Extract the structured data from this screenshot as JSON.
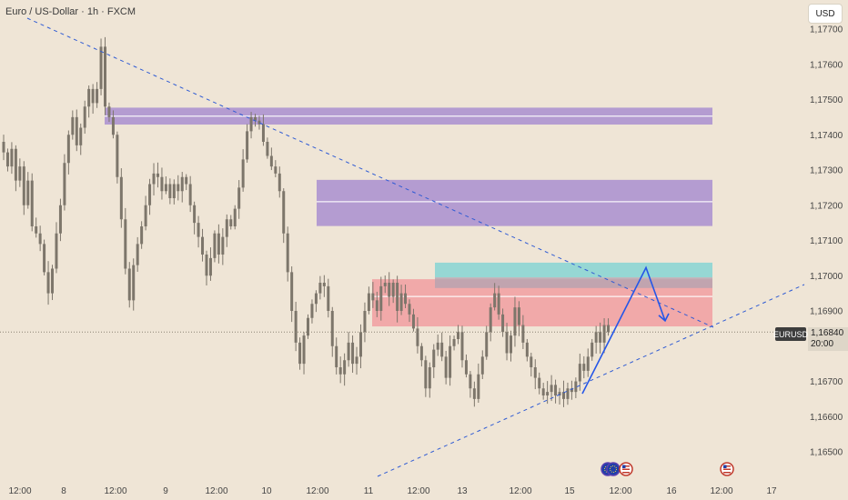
{
  "header": {
    "title": "Euro / US-Dollar · 1h · FXCM",
    "currency_button": "USD"
  },
  "colors": {
    "background": "#efe5d6",
    "candle": "#7d766b",
    "trendline": "#2f5bd4",
    "projection": "#2456e8",
    "zone_purple": "#a98fd0",
    "zone_red": "#f19a9e",
    "zone_teal": "#7fd3d3"
  },
  "chart_data": {
    "type": "candlestick",
    "symbol": "EURUSD",
    "timeframe": "1h",
    "y_axis": {
      "ticks": [
        "1,17700",
        "1,17600",
        "1,17500",
        "1,17400",
        "1,17300",
        "1,17200",
        "1,17100",
        "1,17000",
        "1,16900",
        "1,16700",
        "1,16600",
        "1,16500"
      ],
      "range": [
        1.1645,
        1.1777
      ]
    },
    "x_axis": {
      "ticks": [
        "12:00",
        "8",
        "12:00",
        "9",
        "12:00",
        "10",
        "12:00",
        "11",
        "12:00",
        "13",
        "12:00",
        "15",
        "12:00",
        "16",
        "12:00",
        "17"
      ]
    },
    "current_price": {
      "symbol": "EURUSD",
      "value": "1,16840",
      "countdown": "20:00",
      "level": 1.1684
    },
    "zones": [
      {
        "kind": "supply",
        "color": "purple",
        "top": 1.17477,
        "bottom": 1.17429,
        "midline": 1.17453
      },
      {
        "kind": "supply",
        "color": "purple",
        "top": 1.17272,
        "bottom": 1.17141,
        "midline": 1.1721
      },
      {
        "kind": "supply",
        "color": "red",
        "top": 1.1699,
        "bottom": 1.16856,
        "midline": 1.16941
      },
      {
        "kind": "fvg",
        "color": "teal",
        "top": 1.17037,
        "bottom": 1.16995
      }
    ],
    "price_path": [
      1.1735,
      1.1731,
      1.1736,
      1.1727,
      1.1731,
      1.172,
      1.1727,
      1.1714,
      1.1712,
      1.1709,
      1.1701,
      1.1695,
      1.1702,
      1.1712,
      1.172,
      1.1732,
      1.174,
      1.1745,
      1.1737,
      1.1742,
      1.1748,
      1.1753,
      1.1749,
      1.1753,
      1.1765,
      1.1748,
      1.1745,
      1.174,
      1.1728,
      1.1716,
      1.1702,
      1.1693,
      1.1703,
      1.1709,
      1.1714,
      1.172,
      1.1726,
      1.1729,
      1.1728,
      1.1724,
      1.1726,
      1.1722,
      1.1726,
      1.1724,
      1.1728,
      1.1726,
      1.172,
      1.1715,
      1.1711,
      1.1706,
      1.17,
      1.1705,
      1.1712,
      1.1706,
      1.1711,
      1.1716,
      1.1714,
      1.1719,
      1.1725,
      1.1733,
      1.1741,
      1.1745,
      1.1744,
      1.1743,
      1.1738,
      1.1734,
      1.1731,
      1.1729,
      1.1724,
      1.1712,
      1.1701,
      1.169,
      1.1681,
      1.1675,
      1.1683,
      1.1688,
      1.1692,
      1.1695,
      1.1698,
      1.1697,
      1.169,
      1.168,
      1.1674,
      1.1672,
      1.1676,
      1.1681,
      1.1675,
      1.1677,
      1.1684,
      1.169,
      1.1695,
      1.1693,
      1.169,
      1.1697,
      1.1698,
      1.1694,
      1.1698,
      1.169,
      1.1695,
      1.1692,
      1.1689,
      1.1685,
      1.168,
      1.1676,
      1.1668,
      1.1674,
      1.1679,
      1.1681,
      1.1677,
      1.1671,
      1.168,
      1.1682,
      1.1684,
      1.1676,
      1.1672,
      1.1668,
      1.1665,
      1.1672,
      1.1677,
      1.1684,
      1.1691,
      1.1695,
      1.1689,
      1.1684,
      1.1678,
      1.1683,
      1.1691,
      1.1686,
      1.1681,
      1.1677,
      1.1674,
      1.1671,
      1.1668,
      1.1666,
      1.1667,
      1.1669,
      1.1666,
      1.1667,
      1.1665,
      1.1668,
      1.1667,
      1.167,
      1.1675,
      1.1673,
      1.1677,
      1.1681,
      1.1684,
      1.1681,
      1.1686,
      1.1684
    ],
    "projection": {
      "line_start": 1.16665,
      "line_peak": 1.17023,
      "line_end": 1.16872
    },
    "event_icons": [
      "eu-flag-icon",
      "eu-flag-icon",
      "us-flag-icon",
      "us-flag-icon"
    ]
  }
}
